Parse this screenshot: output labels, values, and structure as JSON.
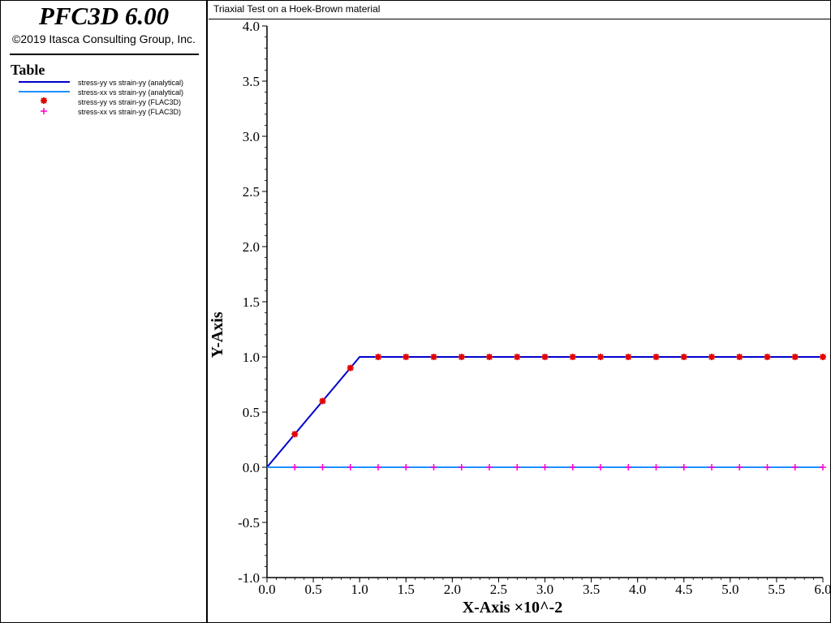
{
  "app": {
    "title": "PFC3D 6.00",
    "copyright": "©2019 Itasca Consulting Group, Inc."
  },
  "legend": {
    "title": "Table",
    "items": [
      {
        "label": "stress-yy vs strain-yy (analytical)",
        "symbol": "line",
        "color": "#0000cc"
      },
      {
        "label": "stress-xx vs strain-yy (analytical)",
        "symbol": "line",
        "color": "#1e90ff"
      },
      {
        "label": "stress-yy vs strain-yy (FLAC3D)",
        "symbol": "asterisk",
        "color": "#e00000"
      },
      {
        "label": "stress-xx vs strain-yy (FLAC3D)",
        "symbol": "plus",
        "color": "#ff00cc"
      }
    ]
  },
  "chart_data": {
    "type": "line",
    "title": "Triaxial Test on a Hoek-Brown material",
    "xlabel": "X-Axis ×10^-2",
    "ylabel": "Y-Axis",
    "xlim": [
      0,
      6
    ],
    "ylim": [
      -1,
      4
    ],
    "x_ticks": [
      "0.0",
      "0.5",
      "1.0",
      "1.5",
      "2.0",
      "2.5",
      "3.0",
      "3.5",
      "4.0",
      "4.5",
      "5.0",
      "5.5",
      "6.0"
    ],
    "y_ticks": [
      "-1.0",
      "-0.5",
      "0.0",
      "0.5",
      "1.0",
      "1.5",
      "2.0",
      "2.5",
      "3.0",
      "3.5",
      "4.0"
    ],
    "grid": false,
    "series": [
      {
        "name": "stress-yy vs strain-yy (analytical)",
        "kind": "line",
        "color": "#0000cc",
        "x": [
          0,
          1.0,
          6.0
        ],
        "y": [
          0,
          1.0,
          1.0
        ]
      },
      {
        "name": "stress-xx vs strain-yy (analytical)",
        "kind": "line",
        "color": "#1e90ff",
        "x": [
          0,
          6.0
        ],
        "y": [
          0,
          0
        ]
      },
      {
        "name": "stress-yy vs strain-yy (FLAC3D)",
        "kind": "asterisk",
        "color": "#e00000",
        "x": [
          0.3,
          0.6,
          0.9,
          1.2,
          1.5,
          1.8,
          2.1,
          2.4,
          2.7,
          3.0,
          3.3,
          3.6,
          3.9,
          4.2,
          4.5,
          4.8,
          5.1,
          5.4,
          5.7,
          6.0
        ],
        "y": [
          0.3,
          0.6,
          0.9,
          1.0,
          1.0,
          1.0,
          1.0,
          1.0,
          1.0,
          1.0,
          1.0,
          1.0,
          1.0,
          1.0,
          1.0,
          1.0,
          1.0,
          1.0,
          1.0,
          1.0
        ]
      },
      {
        "name": "stress-xx vs strain-yy (FLAC3D)",
        "kind": "plus",
        "color": "#ff00cc",
        "x": [
          0.3,
          0.6,
          0.9,
          1.2,
          1.5,
          1.8,
          2.1,
          2.4,
          2.7,
          3.0,
          3.3,
          3.6,
          3.9,
          4.2,
          4.5,
          4.8,
          5.1,
          5.4,
          5.7,
          6.0
        ],
        "y": [
          0,
          0,
          0,
          0,
          0,
          0,
          0,
          0,
          0,
          0,
          0,
          0,
          0,
          0,
          0,
          0,
          0,
          0,
          0,
          0
        ]
      }
    ]
  }
}
